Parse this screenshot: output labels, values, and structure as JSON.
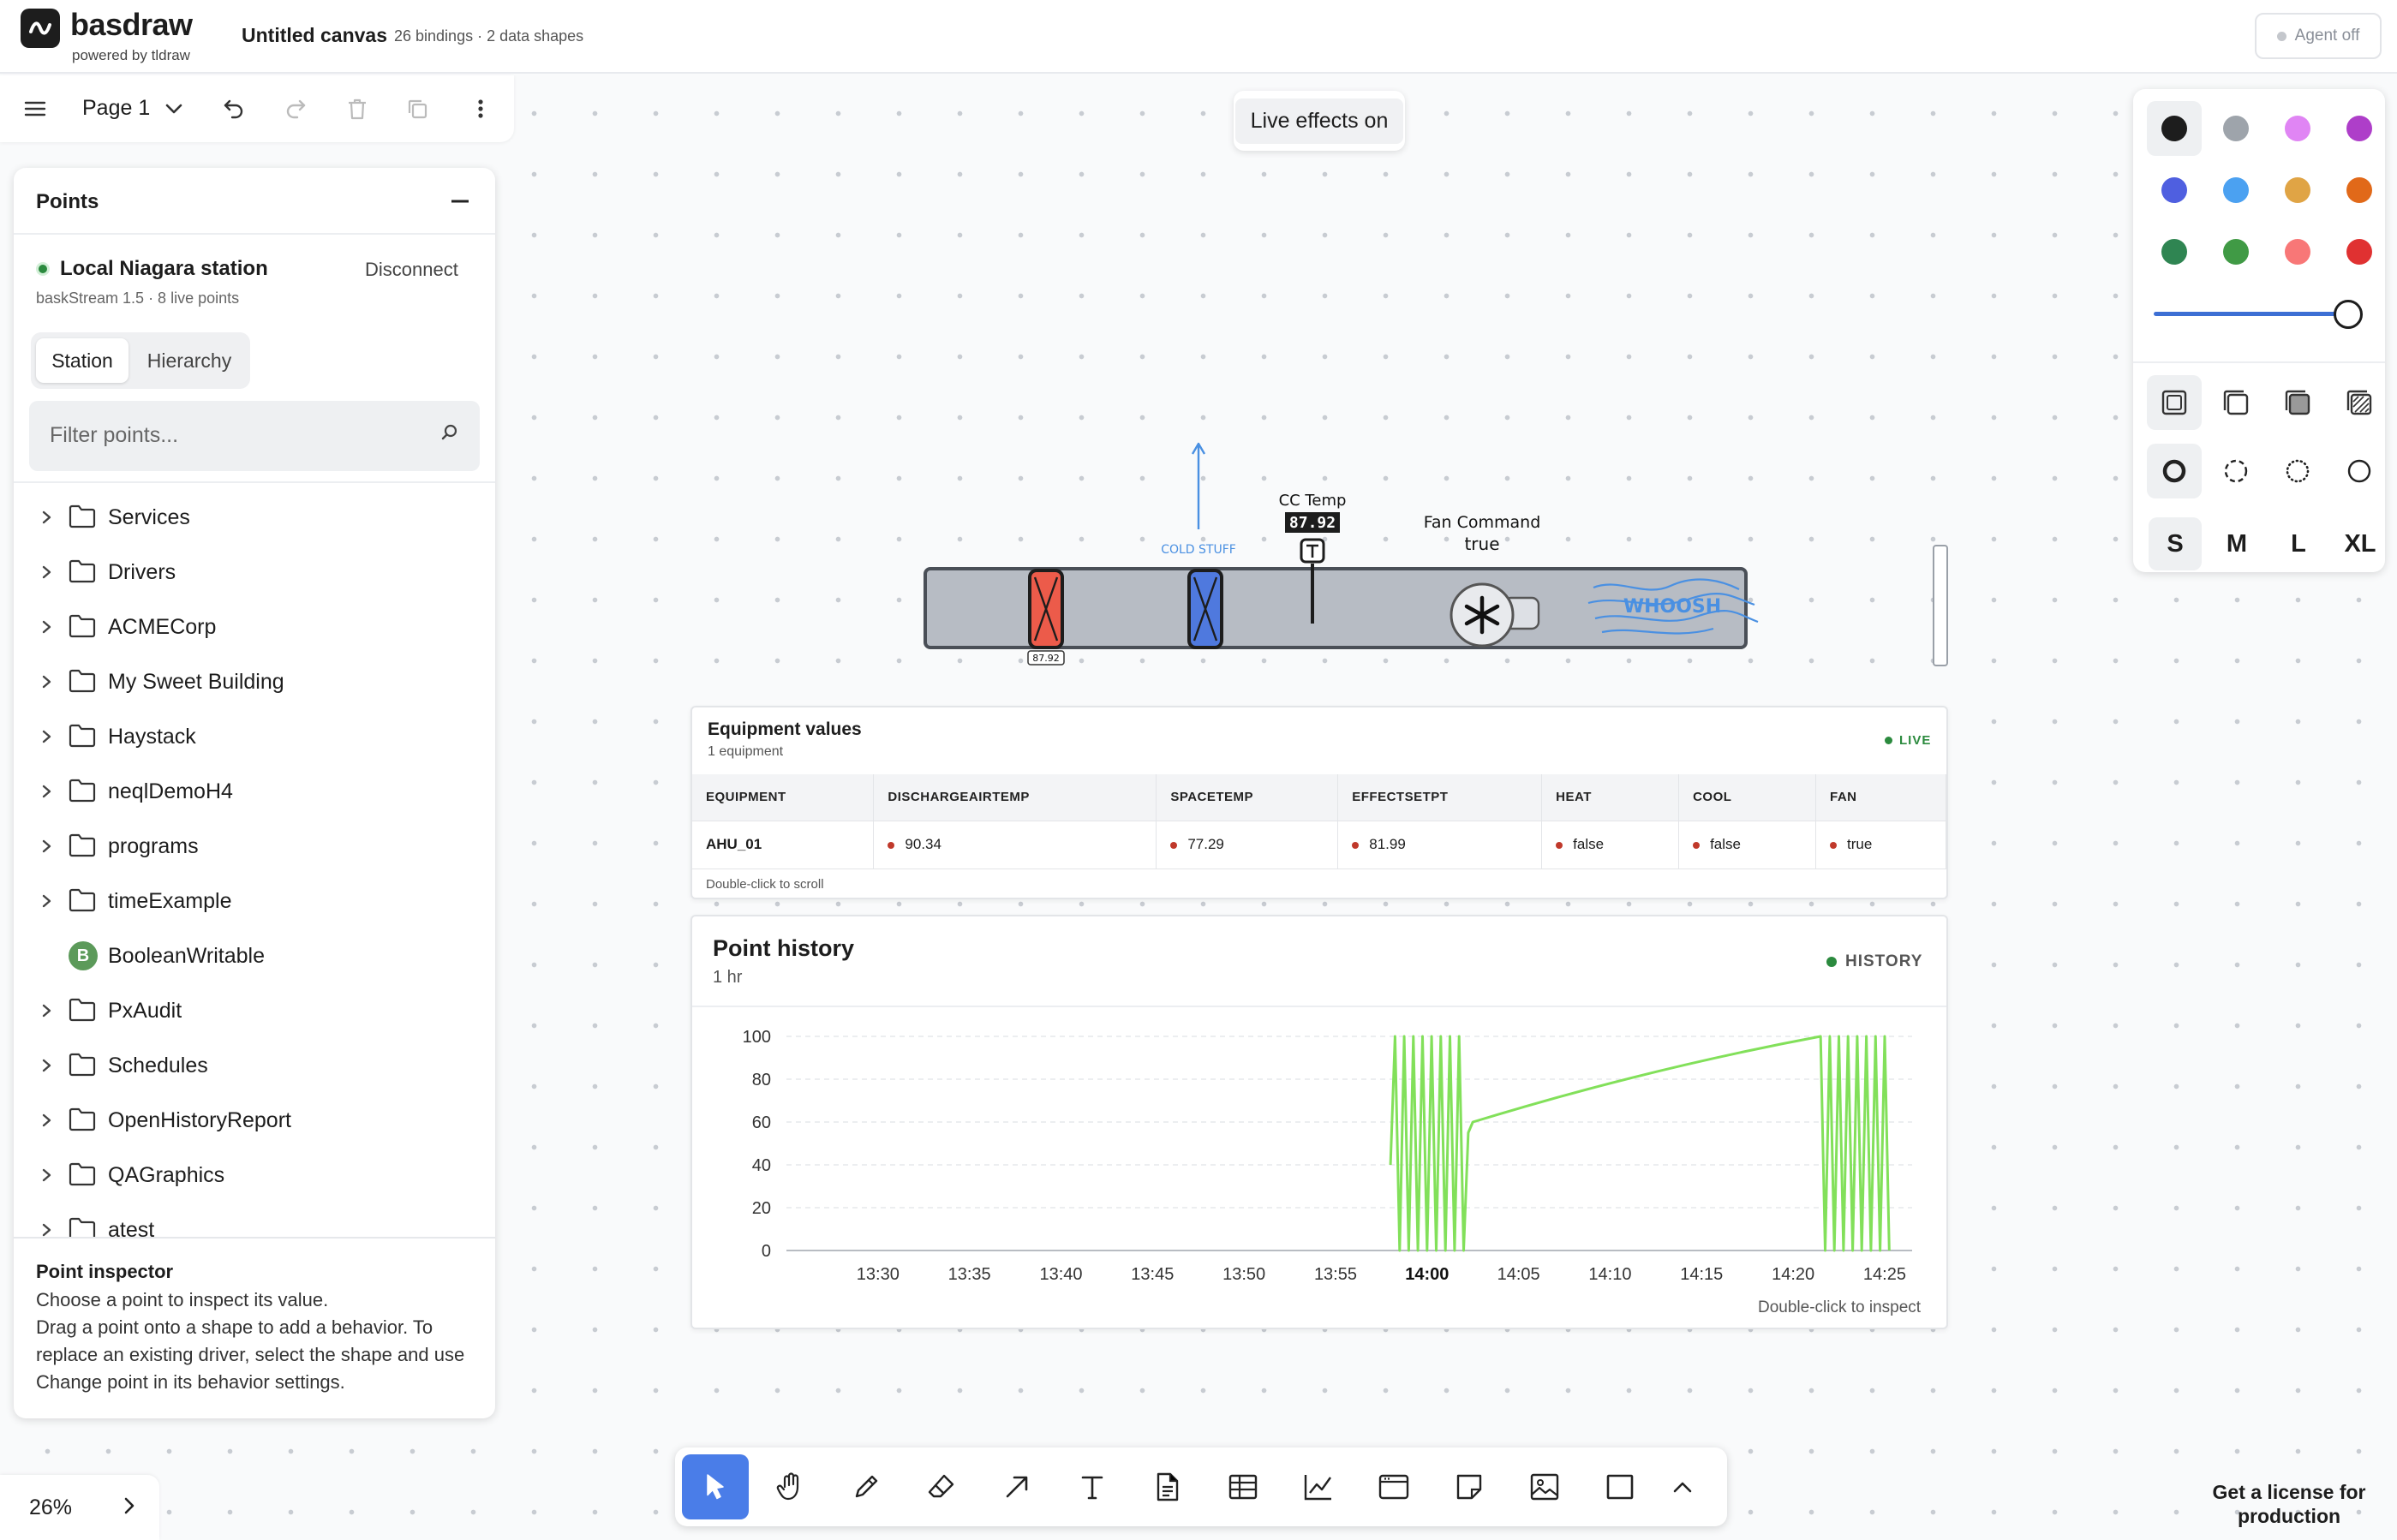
{
  "app": {
    "brand": "basdraw",
    "powered_by": "powered by tldraw",
    "canvas_title": "Untitled canvas",
    "canvas_meta": "26 bindings · 2 data shapes",
    "agent_button": "Agent off"
  },
  "page_menu": {
    "page_name": "Page 1",
    "icons": [
      "menu-icon",
      "chevron-down-icon",
      "undo-icon",
      "redo-icon",
      "trash-icon",
      "duplicate-icon",
      "more-icon"
    ]
  },
  "live_effects": "Live effects on",
  "points_panel": {
    "title": "Points",
    "station_name": "Local Niagara station",
    "disconnect": "Disconnect",
    "station_meta": "baskStream 1.5  ·  8 live points",
    "tabs": [
      "Station",
      "Hierarchy"
    ],
    "filter_placeholder": "Filter points...",
    "tree": [
      {
        "label": "Services",
        "type": "folder"
      },
      {
        "label": "Drivers",
        "type": "folder"
      },
      {
        "label": "ACMECorp",
        "type": "folder"
      },
      {
        "label": "My Sweet Building",
        "type": "folder"
      },
      {
        "label": "Haystack",
        "type": "folder"
      },
      {
        "label": "neqlDemoH4",
        "type": "folder"
      },
      {
        "label": "programs",
        "type": "folder"
      },
      {
        "label": "timeExample",
        "type": "folder"
      },
      {
        "label": "BooleanWritable",
        "type": "boolean",
        "badge": "B"
      },
      {
        "label": "PxAudit",
        "type": "folder"
      },
      {
        "label": "Schedules",
        "type": "folder"
      },
      {
        "label": "OpenHistoryReport",
        "type": "folder"
      },
      {
        "label": "QAGraphics",
        "type": "folder"
      },
      {
        "label": "atest",
        "type": "folder"
      }
    ],
    "inspector_title": "Point inspector",
    "inspector_line1": "Choose a point to inspect its value.",
    "inspector_line2": "Drag a point onto a shape to add a behavior. To replace an existing driver, select the shape and use Change point in its behavior settings."
  },
  "style_panel": {
    "colors": [
      "#1d1d1d",
      "#9ea4ab",
      "#e085f4",
      "#ae3ec9",
      "#4f5fe0",
      "#4ba1f1",
      "#e0a445",
      "#e16919",
      "#2f8552",
      "#409a45",
      "#f87777",
      "#e03131"
    ],
    "selected_color": "#1d1d1d",
    "opacity": 1.0,
    "fill_icons": [
      "fill-none-icon",
      "fill-semi-icon",
      "fill-solid-icon",
      "fill-pattern-icon"
    ],
    "dash_icons": [
      "dash-draw-icon",
      "dash-dashed-icon",
      "dash-dotted-icon",
      "dash-solid-icon"
    ],
    "sizes": [
      "S",
      "M",
      "L",
      "XL"
    ],
    "selected_size": "S"
  },
  "machine": {
    "heater_value": "87.92",
    "cold_label": "COLD STUFF",
    "cc_temp_label": "CC Temp",
    "cc_temp_value": "87.92",
    "fan_label": "Fan Command",
    "fan_value": "true",
    "airflow_label": "WHOOSH"
  },
  "equipment": {
    "title": "Equipment values",
    "subtitle": "1 equipment",
    "status": "LIVE",
    "columns": [
      "EQUIPMENT",
      "DISCHARGEAIRTEMP",
      "SPACETEMP",
      "EFFECTSETPT",
      "HEAT",
      "COOL",
      "FAN"
    ],
    "rows": [
      [
        "AHU_01",
        "90.34",
        "77.29",
        "81.99",
        "false",
        "false",
        "true"
      ]
    ],
    "footer": "Double-click to scroll"
  },
  "history": {
    "title": "Point history",
    "subtitle": "1 hr",
    "status": "HISTORY",
    "footer": "Double-click to inspect",
    "chart_data": {
      "type": "line",
      "title": "Point history",
      "xlabel": "",
      "ylabel": "",
      "ylim": [
        0,
        100
      ],
      "yticks": [
        "100",
        "80",
        "60",
        "40",
        "20",
        "0"
      ],
      "xticks": [
        "13:30",
        "13:35",
        "13:40",
        "13:45",
        "13:50",
        "13:55",
        "14:00",
        "14:05",
        "14:10",
        "14:15",
        "14:20",
        "14:25"
      ],
      "bold_xtick": "14:00",
      "grid": true,
      "color": "#82e05a",
      "series": [
        {
          "x": [
            "13:58:00",
            "13:58:15",
            "13:58:30",
            "13:58:45",
            "13:59:00",
            "13:59:15",
            "13:59:30",
            "13:59:45",
            "14:00:00",
            "14:00:15",
            "14:00:30",
            "14:00:45",
            "14:01:00",
            "14:01:15",
            "14:01:30",
            "14:01:45",
            "14:02:00",
            "14:02:15",
            "14:02:30",
            "14:21:30",
            "14:21:45",
            "14:22:00",
            "14:22:15",
            "14:22:30",
            "14:22:45",
            "14:23:00",
            "14:23:15",
            "14:23:30",
            "14:23:45",
            "14:24:00",
            "14:24:15",
            "14:24:30",
            "14:24:45",
            "14:25:00",
            "14:25:15"
          ],
          "values": [
            40,
            100,
            0,
            100,
            0,
            100,
            0,
            100,
            0,
            100,
            0,
            100,
            0,
            100,
            0,
            100,
            0,
            55,
            60,
            100,
            0,
            100,
            0,
            100,
            0,
            100,
            0,
            100,
            0,
            100,
            0,
            100,
            0,
            100,
            0
          ]
        }
      ]
    }
  },
  "toolbar": {
    "tools": [
      "select-tool",
      "hand-tool",
      "draw-tool",
      "eraser-tool",
      "arrow-tool",
      "text-tool",
      "document-tool",
      "table-tool",
      "chart-tool",
      "browser-tool",
      "note-tool",
      "image-tool",
      "rectangle-tool",
      "more-tools"
    ]
  },
  "zoom": "26%",
  "license": "Get a license for production"
}
